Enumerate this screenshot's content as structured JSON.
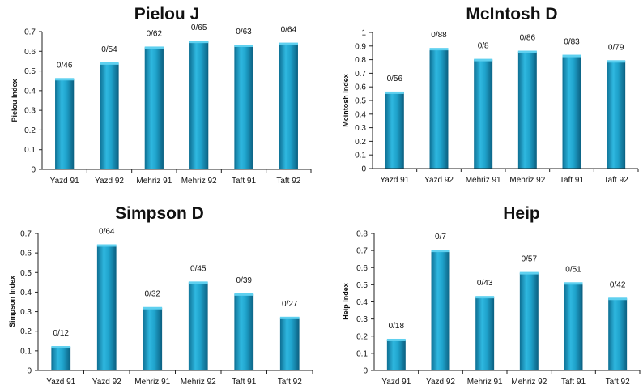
{
  "chart_data": [
    {
      "type": "bar",
      "title": "Pielou J",
      "ylabel": "Pielou Index",
      "categories": [
        "Yazd 91",
        "Yazd 92",
        "Mehriz 91",
        "Mehriz 92",
        "Taft 91",
        "Taft 92"
      ],
      "values": [
        0.46,
        0.54,
        0.62,
        0.65,
        0.63,
        0.64
      ],
      "data_labels": [
        "0/46",
        "0/54",
        "0/62",
        "0/65",
        "0/63",
        "0/64"
      ],
      "ylim": [
        0,
        0.7
      ],
      "yticks": [
        0,
        0.1,
        0.2,
        0.3,
        0.4,
        0.5,
        0.6,
        0.7
      ],
      "ytick_labels": [
        "0",
        "0.1",
        "0.2",
        "0.3",
        "0.4",
        "0.5",
        "0.6",
        "0.7"
      ],
      "grid": false,
      "bar_color": "#1e9fc7"
    },
    {
      "type": "bar",
      "title": "McIntosh D",
      "ylabel": "Mcintosh Index",
      "categories": [
        "Yazd 91",
        "Yazd 92",
        "Mehriz 91",
        "Mehriz 92",
        "Taft 91",
        "Taft 92"
      ],
      "values": [
        0.56,
        0.88,
        0.8,
        0.86,
        0.83,
        0.79
      ],
      "data_labels": [
        "0/56",
        "0/88",
        "0/8",
        "0/86",
        "0/83",
        "0/79"
      ],
      "ylim": [
        0,
        1
      ],
      "yticks": [
        0,
        0.1,
        0.2,
        0.3,
        0.4,
        0.5,
        0.6,
        0.7,
        0.8,
        0.9,
        1
      ],
      "ytick_labels": [
        "0",
        "0.1",
        "0.2",
        "0.3",
        "0.4",
        "0.5",
        "0.6",
        "0.7",
        "0.8",
        "0.9",
        "1"
      ],
      "grid": false,
      "bar_color": "#1e9fc7"
    },
    {
      "type": "bar",
      "title": "Simpson D",
      "ylabel": "Simpson Index",
      "categories": [
        "Yazd 91",
        "Yazd 92",
        "Mehriz 91",
        "Mehriz 92",
        "Taft 91",
        "Taft 92"
      ],
      "values": [
        0.12,
        0.64,
        0.32,
        0.45,
        0.39,
        0.27
      ],
      "data_labels": [
        "0/12",
        "0/64",
        "0/32",
        "0/45",
        "0/39",
        "0/27"
      ],
      "ylim": [
        0,
        0.7
      ],
      "yticks": [
        0,
        0.1,
        0.2,
        0.3,
        0.4,
        0.5,
        0.6,
        0.7
      ],
      "ytick_labels": [
        "0",
        "0.1",
        "0.2",
        "0.3",
        "0.4",
        "0.5",
        "0.6",
        "0.7"
      ],
      "grid": false,
      "bar_color": "#1e9fc7"
    },
    {
      "type": "bar",
      "title": "Heip",
      "ylabel": "Heip Index",
      "categories": [
        "Yazd 91",
        "Yazd 92",
        "Mehriz 91",
        "Mehriz 92",
        "Taft 91",
        "Taft 92"
      ],
      "values": [
        0.18,
        0.7,
        0.43,
        0.57,
        0.51,
        0.42
      ],
      "data_labels": [
        "0/18",
        "0/7",
        "0/43",
        "0/57",
        "0/51",
        "0/42"
      ],
      "ylim": [
        0,
        0.8
      ],
      "yticks": [
        0,
        0.1,
        0.2,
        0.3,
        0.4,
        0.5,
        0.6,
        0.7,
        0.8
      ],
      "ytick_labels": [
        "0",
        "0.1",
        "0.2",
        "0.3",
        "0.4",
        "0.5",
        "0.6",
        "0.7",
        "0.8"
      ],
      "grid": false,
      "bar_color": "#1e9fc7"
    }
  ]
}
